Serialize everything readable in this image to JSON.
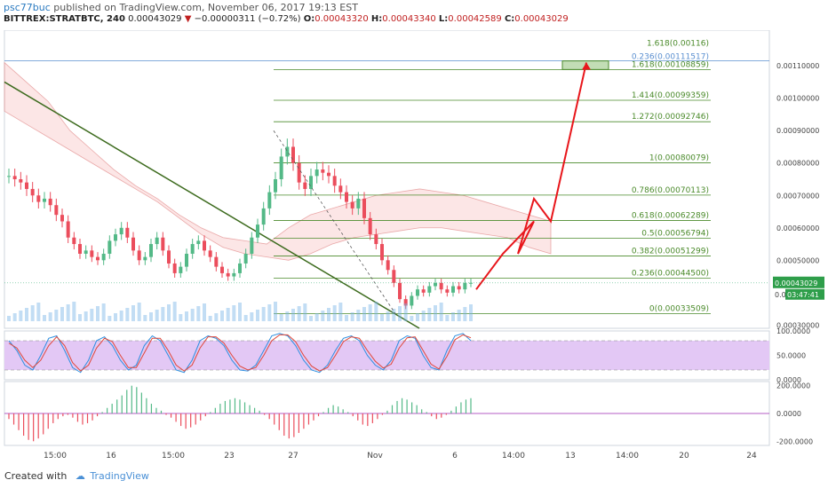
{
  "header": {
    "user": "psc77buc",
    "published_text": "published on TradingView.com, November 06, 2017 19:13 EST",
    "symbol": "BITTREX:STRATBTC, 240",
    "last": "0.00043029",
    "change_icon": "down-triangle-icon",
    "change": "−0.00000311 (−0.72%)",
    "open_label": "O:",
    "open": "0.00043320",
    "high_label": "H:",
    "high": "0.00043340",
    "low_label": "L:",
    "low": "0.00042589",
    "close_label": "C:",
    "close": "0.00043029"
  },
  "footer": {
    "created_with": "Created with",
    "brand": "TradingView",
    "brand_icon": "tradingview-logo-icon"
  },
  "colors": {
    "up": "#53b987",
    "down": "#eb4d5c",
    "fib": "#4a8a2a",
    "projection": "#e8161b",
    "trendline": "#3d6b1e",
    "stoch_k": "#2e8fe0",
    "stoch_d": "#e0473a",
    "stoch_band": "#e3c8f5"
  },
  "chart_data": [
    {
      "type": "candlestick",
      "panel": "price",
      "y_scale": "linear",
      "ylim": [
        0.00029,
        0.00121
      ],
      "y_ticks": [
        "0.00110000",
        "0.00100000",
        "0.00090000",
        "0.00080000",
        "0.00070000",
        "0.00060000",
        "0.00050000",
        "0.00030000"
      ],
      "y_tick_values": [
        0.0011,
        0.001,
        0.0009,
        0.0008,
        0.0007,
        0.0006,
        0.0005,
        0.0003
      ],
      "x_ticks": [
        "15:00",
        "16",
        "15:00",
        "23",
        "27",
        "Nov",
        "6",
        "14:00",
        "13",
        "14:00",
        "20",
        "24"
      ],
      "last_price_label": "0.00043029",
      "countdown_label": "03:47:41",
      "partial_label": "0.0",
      "price_series": [
        0.00076,
        0.00075,
        0.00074,
        0.00072,
        0.0007,
        0.00068,
        0.00069,
        0.00067,
        0.00064,
        0.00062,
        0.00057,
        0.00055,
        0.00052,
        0.00053,
        0.00051,
        0.0005,
        0.00052,
        0.00056,
        0.00058,
        0.0006,
        0.00057,
        0.00053,
        0.0005,
        0.00051,
        0.00055,
        0.00057,
        0.00053,
        0.00049,
        0.00046,
        0.00048,
        0.00052,
        0.00055,
        0.00056,
        0.00053,
        0.00051,
        0.00048,
        0.00046,
        0.00045,
        0.00046,
        0.00049,
        0.00052,
        0.00057,
        0.00061,
        0.00066,
        0.00071,
        0.00075,
        0.00082,
        0.00085,
        0.0008,
        0.00074,
        0.00072,
        0.00076,
        0.00078,
        0.00077,
        0.00076,
        0.00073,
        0.00071,
        0.00068,
        0.00066,
        0.00069,
        0.00063,
        0.00058,
        0.00055,
        0.0005,
        0.00047,
        0.00043,
        0.00038,
        0.00036,
        0.00039,
        0.00041,
        0.0004,
        0.00042,
        0.00043,
        0.00041,
        0.0004,
        0.00042,
        0.00041,
        0.00043,
        0.00043029
      ],
      "fib_levels": [
        {
          "ratio": "0",
          "price": "0.00033509",
          "value": 0.00033509
        },
        {
          "ratio": "0.236",
          "price": "0.00044500",
          "value": 0.000445
        },
        {
          "ratio": "0.382",
          "price": "0.00051299",
          "value": 0.00051299
        },
        {
          "ratio": "0.5",
          "price": "0.00056794",
          "value": 0.00056794
        },
        {
          "ratio": "0.618",
          "price": "0.00062289",
          "value": 0.00062289
        },
        {
          "ratio": "0.786",
          "price": "0.00070113",
          "value": 0.00070113
        },
        {
          "ratio": "1",
          "price": "0.00080079",
          "value": 0.00080079
        },
        {
          "ratio": "1.272",
          "price": "0.00092746",
          "value": 0.00092746
        },
        {
          "ratio": "1.414",
          "price": "0.00099359",
          "value": 0.00099359
        },
        {
          "ratio": "1.618",
          "price": "0.00108859",
          "value": 0.00108859
        }
      ],
      "upper_fib": {
        "ratio": "0.236",
        "price": "0.00111517",
        "value": 0.00111517
      },
      "top_fib": {
        "ratio": "1.618",
        "price": "0.00116",
        "value": 0.00116
      },
      "projection_path": [
        0.00041,
        0.00052,
        0.00062,
        0.00052,
        0.00069,
        0.00062,
        0.00111
      ],
      "trendline": [
        0.00105,
        0.00029
      ]
    },
    {
      "type": "line",
      "panel": "stochastic",
      "ylim": [
        0,
        100
      ],
      "y_ticks": [
        "100.0000",
        "50.0000",
        "0.0000"
      ],
      "band": [
        20,
        80
      ],
      "series": [
        {
          "values": [
            80,
            60,
            30,
            20,
            50,
            85,
            90,
            60,
            25,
            15,
            40,
            80,
            88,
            70,
            40,
            20,
            30,
            70,
            90,
            80,
            50,
            20,
            15,
            40,
            80,
            90,
            85,
            70,
            40,
            20,
            18,
            30,
            60,
            90,
            95,
            90,
            70,
            40,
            20,
            15,
            30,
            60,
            85,
            90,
            80,
            50,
            30,
            20,
            40,
            80,
            90,
            85,
            50,
            25,
            20,
            60,
            90,
            95,
            80
          ]
        },
        {
          "values": [
            75,
            65,
            40,
            25,
            40,
            70,
            88,
            70,
            35,
            18,
            30,
            65,
            85,
            78,
            50,
            25,
            25,
            55,
            85,
            85,
            60,
            30,
            18,
            30,
            65,
            88,
            88,
            75,
            50,
            28,
            20,
            25,
            50,
            80,
            92,
            92,
            78,
            50,
            28,
            18,
            25,
            50,
            78,
            88,
            85,
            60,
            38,
            24,
            32,
            65,
            86,
            88,
            60,
            32,
            22,
            48,
            82,
            92,
            86
          ]
        }
      ]
    },
    {
      "type": "bar",
      "panel": "oscillator",
      "ylim": [
        -230,
        230
      ],
      "y_ticks": [
        "200.0000",
        "0.0000",
        "-200.0000"
      ],
      "values": [
        -40,
        -80,
        -120,
        -160,
        -190,
        -200,
        -180,
        -150,
        -110,
        -70,
        -40,
        -20,
        -10,
        -30,
        -60,
        -80,
        -70,
        -50,
        -20,
        10,
        40,
        70,
        100,
        130,
        170,
        200,
        190,
        150,
        110,
        70,
        40,
        20,
        -10,
        -30,
        -60,
        -90,
        -110,
        -100,
        -80,
        -50,
        -20,
        10,
        40,
        70,
        90,
        100,
        110,
        100,
        80,
        60,
        40,
        20,
        -10,
        -40,
        -80,
        -120,
        -160,
        -180,
        -170,
        -140,
        -110,
        -80,
        -50,
        -20,
        10,
        40,
        60,
        50,
        30,
        10,
        -20,
        -50,
        -80,
        -90,
        -70,
        -40,
        -10,
        20,
        60,
        90,
        110,
        100,
        80,
        60,
        30,
        10,
        -20,
        -40,
        -30,
        -10,
        20,
        50,
        80,
        100,
        110
      ]
    }
  ]
}
